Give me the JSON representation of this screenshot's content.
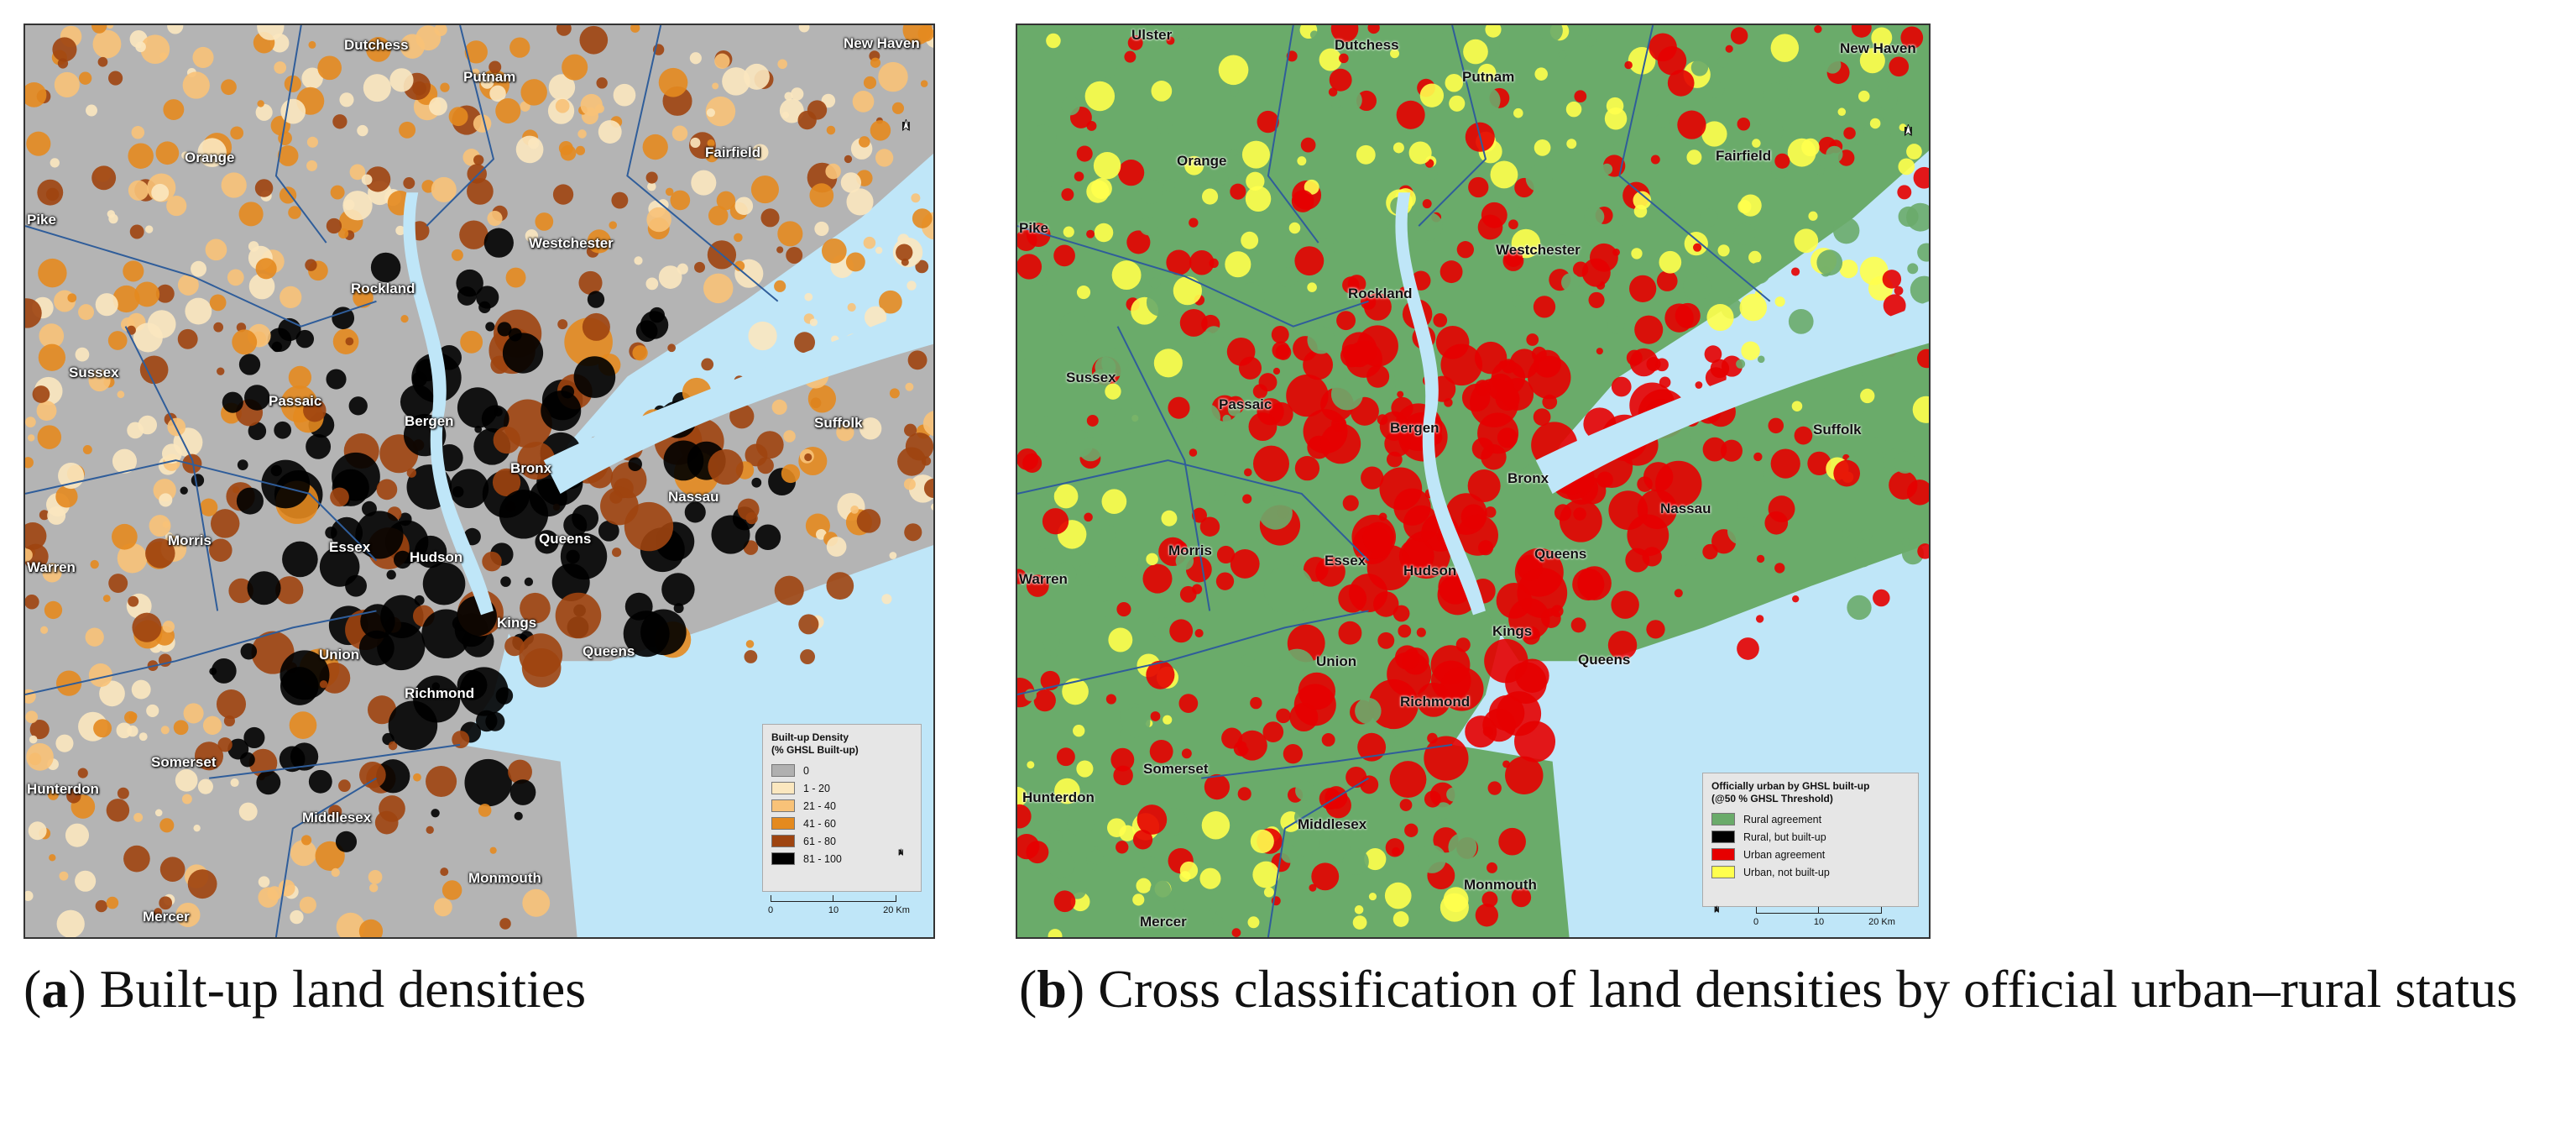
{
  "panel_a": {
    "place_labels": [
      "Dutchess",
      "Putnam",
      "New Haven",
      "Orange",
      "Fairfield",
      "Pike",
      "Westchester",
      "Rockland",
      "Sussex",
      "Passaic",
      "Bergen",
      "Suffolk",
      "Bronx",
      "Nassau",
      "Morris",
      "Essex",
      "Hudson",
      "Queens",
      "Warren",
      "Kings",
      "Union",
      "Queens",
      "Richmond",
      "Somerset",
      "Hunterdon",
      "Middlesex",
      "Monmouth",
      "Mercer"
    ],
    "north_label": "N",
    "legend": {
      "title": "Built-up Density\n(% GHSL Built-up)",
      "items": [
        {
          "label": "0",
          "color": "#b0b0b0"
        },
        {
          "label": "1 - 20",
          "color": "#fbe7bf"
        },
        {
          "label": "21 - 40",
          "color": "#f8c278"
        },
        {
          "label": "41 - 60",
          "color": "#e48a1f"
        },
        {
          "label": "61 - 80",
          "color": "#9e4410"
        },
        {
          "label": "81 - 100",
          "color": "#000000"
        }
      ]
    },
    "scale": {
      "ticks": [
        "0",
        "10",
        "20 Km"
      ]
    },
    "colors": {
      "water": "#bfe6f8",
      "land": "#b4b4b4",
      "border": "#2f5d9a"
    }
  },
  "panel_b": {
    "place_labels": [
      "Ulster",
      "Dutchess",
      "Putnam",
      "New Haven",
      "Orange",
      "Fairfield",
      "Pike",
      "Westchester",
      "Rockland",
      "Sussex",
      "Passaic",
      "Bergen",
      "Suffolk",
      "Bronx",
      "Nassau",
      "Morris",
      "Essex",
      "Hudson",
      "Queens",
      "Warren",
      "Kings",
      "Union",
      "Queens",
      "Richmond",
      "Somerset",
      "Hunterdon",
      "Middlesex",
      "Monmouth",
      "Mercer"
    ],
    "north_label": "N",
    "legend": {
      "title": "Officially urban by GHSL built-up\n(@50 % GHSL Threshold)",
      "items": [
        {
          "label": "Rural agreement",
          "color": "#6aab6a"
        },
        {
          "label": "Rural, but built-up",
          "color": "#000000"
        },
        {
          "label": "Urban agreement",
          "color": "#e60000"
        },
        {
          "label": "Urban, not built-up",
          "color": "#ffff4d"
        }
      ]
    },
    "scale": {
      "ticks": [
        "0",
        "10",
        "20 Km"
      ]
    },
    "colors": {
      "water": "#bfe6f8",
      "land": "#6aab6a",
      "border": "#2f5d9a"
    }
  },
  "captions": {
    "a_letter": "a",
    "a_text": "Built-up land densities",
    "b_letter": "b",
    "b_text": "Cross classification of land densities by official urban–rural status"
  }
}
